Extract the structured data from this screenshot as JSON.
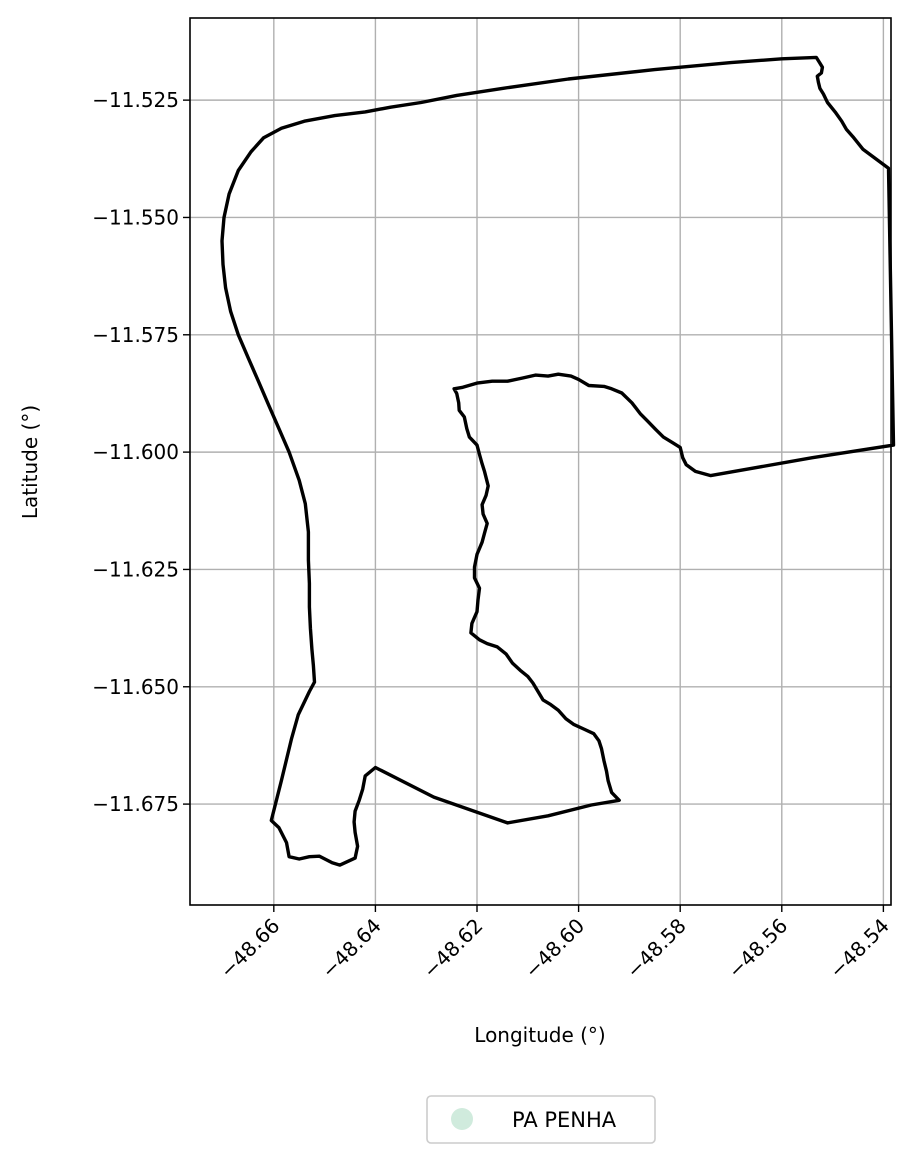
{
  "chart_data": {
    "type": "map",
    "xlabel": "Longitude (°)",
    "ylabel": "Latitude (°)",
    "xlim": [
      -48.6765,
      -48.5385
    ],
    "ylim": [
      -11.6965,
      -11.5075
    ],
    "grid": true,
    "xticks": [
      -48.66,
      -48.64,
      -48.62,
      -48.6,
      -48.58,
      -48.56,
      -48.54
    ],
    "yticks": [
      -11.525,
      -11.55,
      -11.575,
      -11.6,
      -11.625,
      -11.65,
      -11.675
    ],
    "xtick_labels": [
      "−48.66",
      "−48.64",
      "−48.62",
      "−48.60",
      "−48.58",
      "−48.56",
      "−48.54"
    ],
    "ytick_labels": [
      "−11.525",
      "−11.550",
      "−11.575",
      "−11.600",
      "−11.625",
      "−11.650",
      "−11.675"
    ],
    "legend": {
      "placement": "bottom-center",
      "entries": [
        {
          "label": "PA PENHA",
          "color": "#d0ebdd"
        }
      ]
    },
    "series": [
      {
        "name": "PA PENHA",
        "geometry": "polygon",
        "stroke": "#000000",
        "coordinates": [
          [
            -48.5532,
            -11.5159
          ],
          [
            -48.5525,
            -11.5171
          ],
          [
            -48.552,
            -11.518
          ],
          [
            -48.5522,
            -11.5192
          ],
          [
            -48.553,
            -11.5199
          ],
          [
            -48.5528,
            -11.5212
          ],
          [
            -48.5525,
            -11.5225
          ],
          [
            -48.5518,
            -11.5237
          ],
          [
            -48.551,
            -11.5255
          ],
          [
            -48.5495,
            -11.5275
          ],
          [
            -48.5482,
            -11.5295
          ],
          [
            -48.5473,
            -11.5312
          ],
          [
            -48.546,
            -11.5328
          ],
          [
            -48.544,
            -11.5355
          ],
          [
            -48.539,
            -11.5395
          ],
          [
            -48.538,
            -11.5985
          ],
          [
            -48.554,
            -11.6012
          ],
          [
            -48.574,
            -11.605
          ],
          [
            -48.577,
            -11.6041
          ],
          [
            -48.5788,
            -11.6027
          ],
          [
            -48.5795,
            -11.6012
          ],
          [
            -48.58,
            -11.599
          ],
          [
            -48.5815,
            -11.598
          ],
          [
            -48.5833,
            -11.5968
          ],
          [
            -48.5848,
            -11.5952
          ],
          [
            -48.5865,
            -11.5933
          ],
          [
            -48.5878,
            -11.5919
          ],
          [
            -48.5895,
            -11.5895
          ],
          [
            -48.5915,
            -11.5874
          ],
          [
            -48.5935,
            -11.5865
          ],
          [
            -48.595,
            -11.586
          ],
          [
            -48.598,
            -11.5858
          ],
          [
            -48.6,
            -11.5845
          ],
          [
            -48.6015,
            -11.5838
          ],
          [
            -48.604,
            -11.5834
          ],
          [
            -48.606,
            -11.5838
          ],
          [
            -48.6085,
            -11.5836
          ],
          [
            -48.611,
            -11.5842
          ],
          [
            -48.614,
            -11.5849
          ],
          [
            -48.617,
            -11.5849
          ],
          [
            -48.62,
            -11.5853
          ],
          [
            -48.6228,
            -11.5862
          ],
          [
            -48.6245,
            -11.5865
          ],
          [
            -48.624,
            -11.5875
          ],
          [
            -48.6236,
            -11.5895
          ],
          [
            -48.6235,
            -11.5911
          ],
          [
            -48.6225,
            -11.5925
          ],
          [
            -48.622,
            -11.595
          ],
          [
            -48.6215,
            -11.5968
          ],
          [
            -48.62,
            -11.5985
          ],
          [
            -48.6195,
            -11.6005
          ],
          [
            -48.619,
            -11.6025
          ],
          [
            -48.6185,
            -11.6042
          ],
          [
            -48.6178,
            -11.6072
          ],
          [
            -48.6182,
            -11.6092
          ],
          [
            -48.619,
            -11.6112
          ],
          [
            -48.6188,
            -11.6132
          ],
          [
            -48.618,
            -11.6152
          ],
          [
            -48.6185,
            -11.6172
          ],
          [
            -48.619,
            -11.6192
          ],
          [
            -48.62,
            -11.6218
          ],
          [
            -48.6205,
            -11.6245
          ],
          [
            -48.6205,
            -11.6268
          ],
          [
            -48.6195,
            -11.629
          ],
          [
            -48.6198,
            -11.6315
          ],
          [
            -48.62,
            -11.634
          ],
          [
            -48.621,
            -11.6365
          ],
          [
            -48.6212,
            -11.6385
          ],
          [
            -48.6195,
            -11.64
          ],
          [
            -48.618,
            -11.6408
          ],
          [
            -48.616,
            -11.6415
          ],
          [
            -48.6143,
            -11.643
          ],
          [
            -48.613,
            -11.645
          ],
          [
            -48.6115,
            -11.6465
          ],
          [
            -48.61,
            -11.6478
          ],
          [
            -48.609,
            -11.6492
          ],
          [
            -48.608,
            -11.651
          ],
          [
            -48.607,
            -11.6528
          ],
          [
            -48.6055,
            -11.6538
          ],
          [
            -48.604,
            -11.655
          ],
          [
            -48.6025,
            -11.6568
          ],
          [
            -48.601,
            -11.658
          ],
          [
            -48.599,
            -11.659
          ],
          [
            -48.597,
            -11.66
          ],
          [
            -48.596,
            -11.6615
          ],
          [
            -48.5955,
            -11.6632
          ],
          [
            -48.595,
            -11.6658
          ],
          [
            -48.5945,
            -11.668
          ],
          [
            -48.5942,
            -11.67
          ],
          [
            -48.5935,
            -11.6725
          ],
          [
            -48.592,
            -11.6742
          ],
          [
            -48.5975,
            -11.6752
          ],
          [
            -48.606,
            -11.6775
          ],
          [
            -48.614,
            -11.679
          ],
          [
            -48.6285,
            -11.6735
          ],
          [
            -48.64,
            -11.6672
          ],
          [
            -48.642,
            -11.669
          ],
          [
            -48.6425,
            -11.6718
          ],
          [
            -48.6432,
            -11.6742
          ],
          [
            -48.644,
            -11.6765
          ],
          [
            -48.6442,
            -11.6788
          ],
          [
            -48.644,
            -11.681
          ],
          [
            -48.6435,
            -11.684
          ],
          [
            -48.644,
            -11.6865
          ],
          [
            -48.647,
            -11.688
          ],
          [
            -48.6485,
            -11.6875
          ],
          [
            -48.651,
            -11.6861
          ],
          [
            -48.653,
            -11.6862
          ],
          [
            -48.655,
            -11.6867
          ],
          [
            -48.657,
            -11.6862
          ],
          [
            -48.6575,
            -11.6832
          ],
          [
            -48.659,
            -11.68
          ],
          [
            -48.6605,
            -11.6785
          ],
          [
            -48.6585,
            -11.67
          ],
          [
            -48.6565,
            -11.661
          ],
          [
            -48.6552,
            -11.656
          ],
          [
            -48.653,
            -11.651
          ],
          [
            -48.652,
            -11.649
          ],
          [
            -48.6522,
            -11.6455
          ],
          [
            -48.6525,
            -11.642
          ],
          [
            -48.6528,
            -11.6375
          ],
          [
            -48.653,
            -11.633
          ],
          [
            -48.653,
            -11.628
          ],
          [
            -48.6532,
            -11.623
          ],
          [
            -48.6532,
            -11.617
          ],
          [
            -48.6538,
            -11.611
          ],
          [
            -48.655,
            -11.606
          ],
          [
            -48.657,
            -11.6
          ],
          [
            -48.659,
            -11.595
          ],
          [
            -48.661,
            -11.59
          ],
          [
            -48.663,
            -11.585
          ],
          [
            -48.665,
            -11.58
          ],
          [
            -48.667,
            -11.575
          ],
          [
            -48.6685,
            -11.57
          ],
          [
            -48.6695,
            -11.565
          ],
          [
            -48.67,
            -11.56
          ],
          [
            -48.6702,
            -11.555
          ],
          [
            -48.6698,
            -11.55
          ],
          [
            -48.6688,
            -11.545
          ],
          [
            -48.667,
            -11.54
          ],
          [
            -48.6645,
            -11.536
          ],
          [
            -48.662,
            -11.533
          ],
          [
            -48.6585,
            -11.531
          ],
          [
            -48.654,
            -11.5295
          ],
          [
            -48.648,
            -11.5283
          ],
          [
            -48.642,
            -11.5275
          ],
          [
            -48.637,
            -11.5265
          ],
          [
            -48.631,
            -11.5255
          ],
          [
            -48.624,
            -11.524
          ],
          [
            -48.615,
            -11.5225
          ],
          [
            -48.602,
            -11.5205
          ],
          [
            -48.585,
            -11.5185
          ],
          [
            -48.57,
            -11.517
          ],
          [
            -48.56,
            -11.5162
          ],
          [
            -48.5532,
            -11.5159
          ]
        ]
      }
    ]
  }
}
